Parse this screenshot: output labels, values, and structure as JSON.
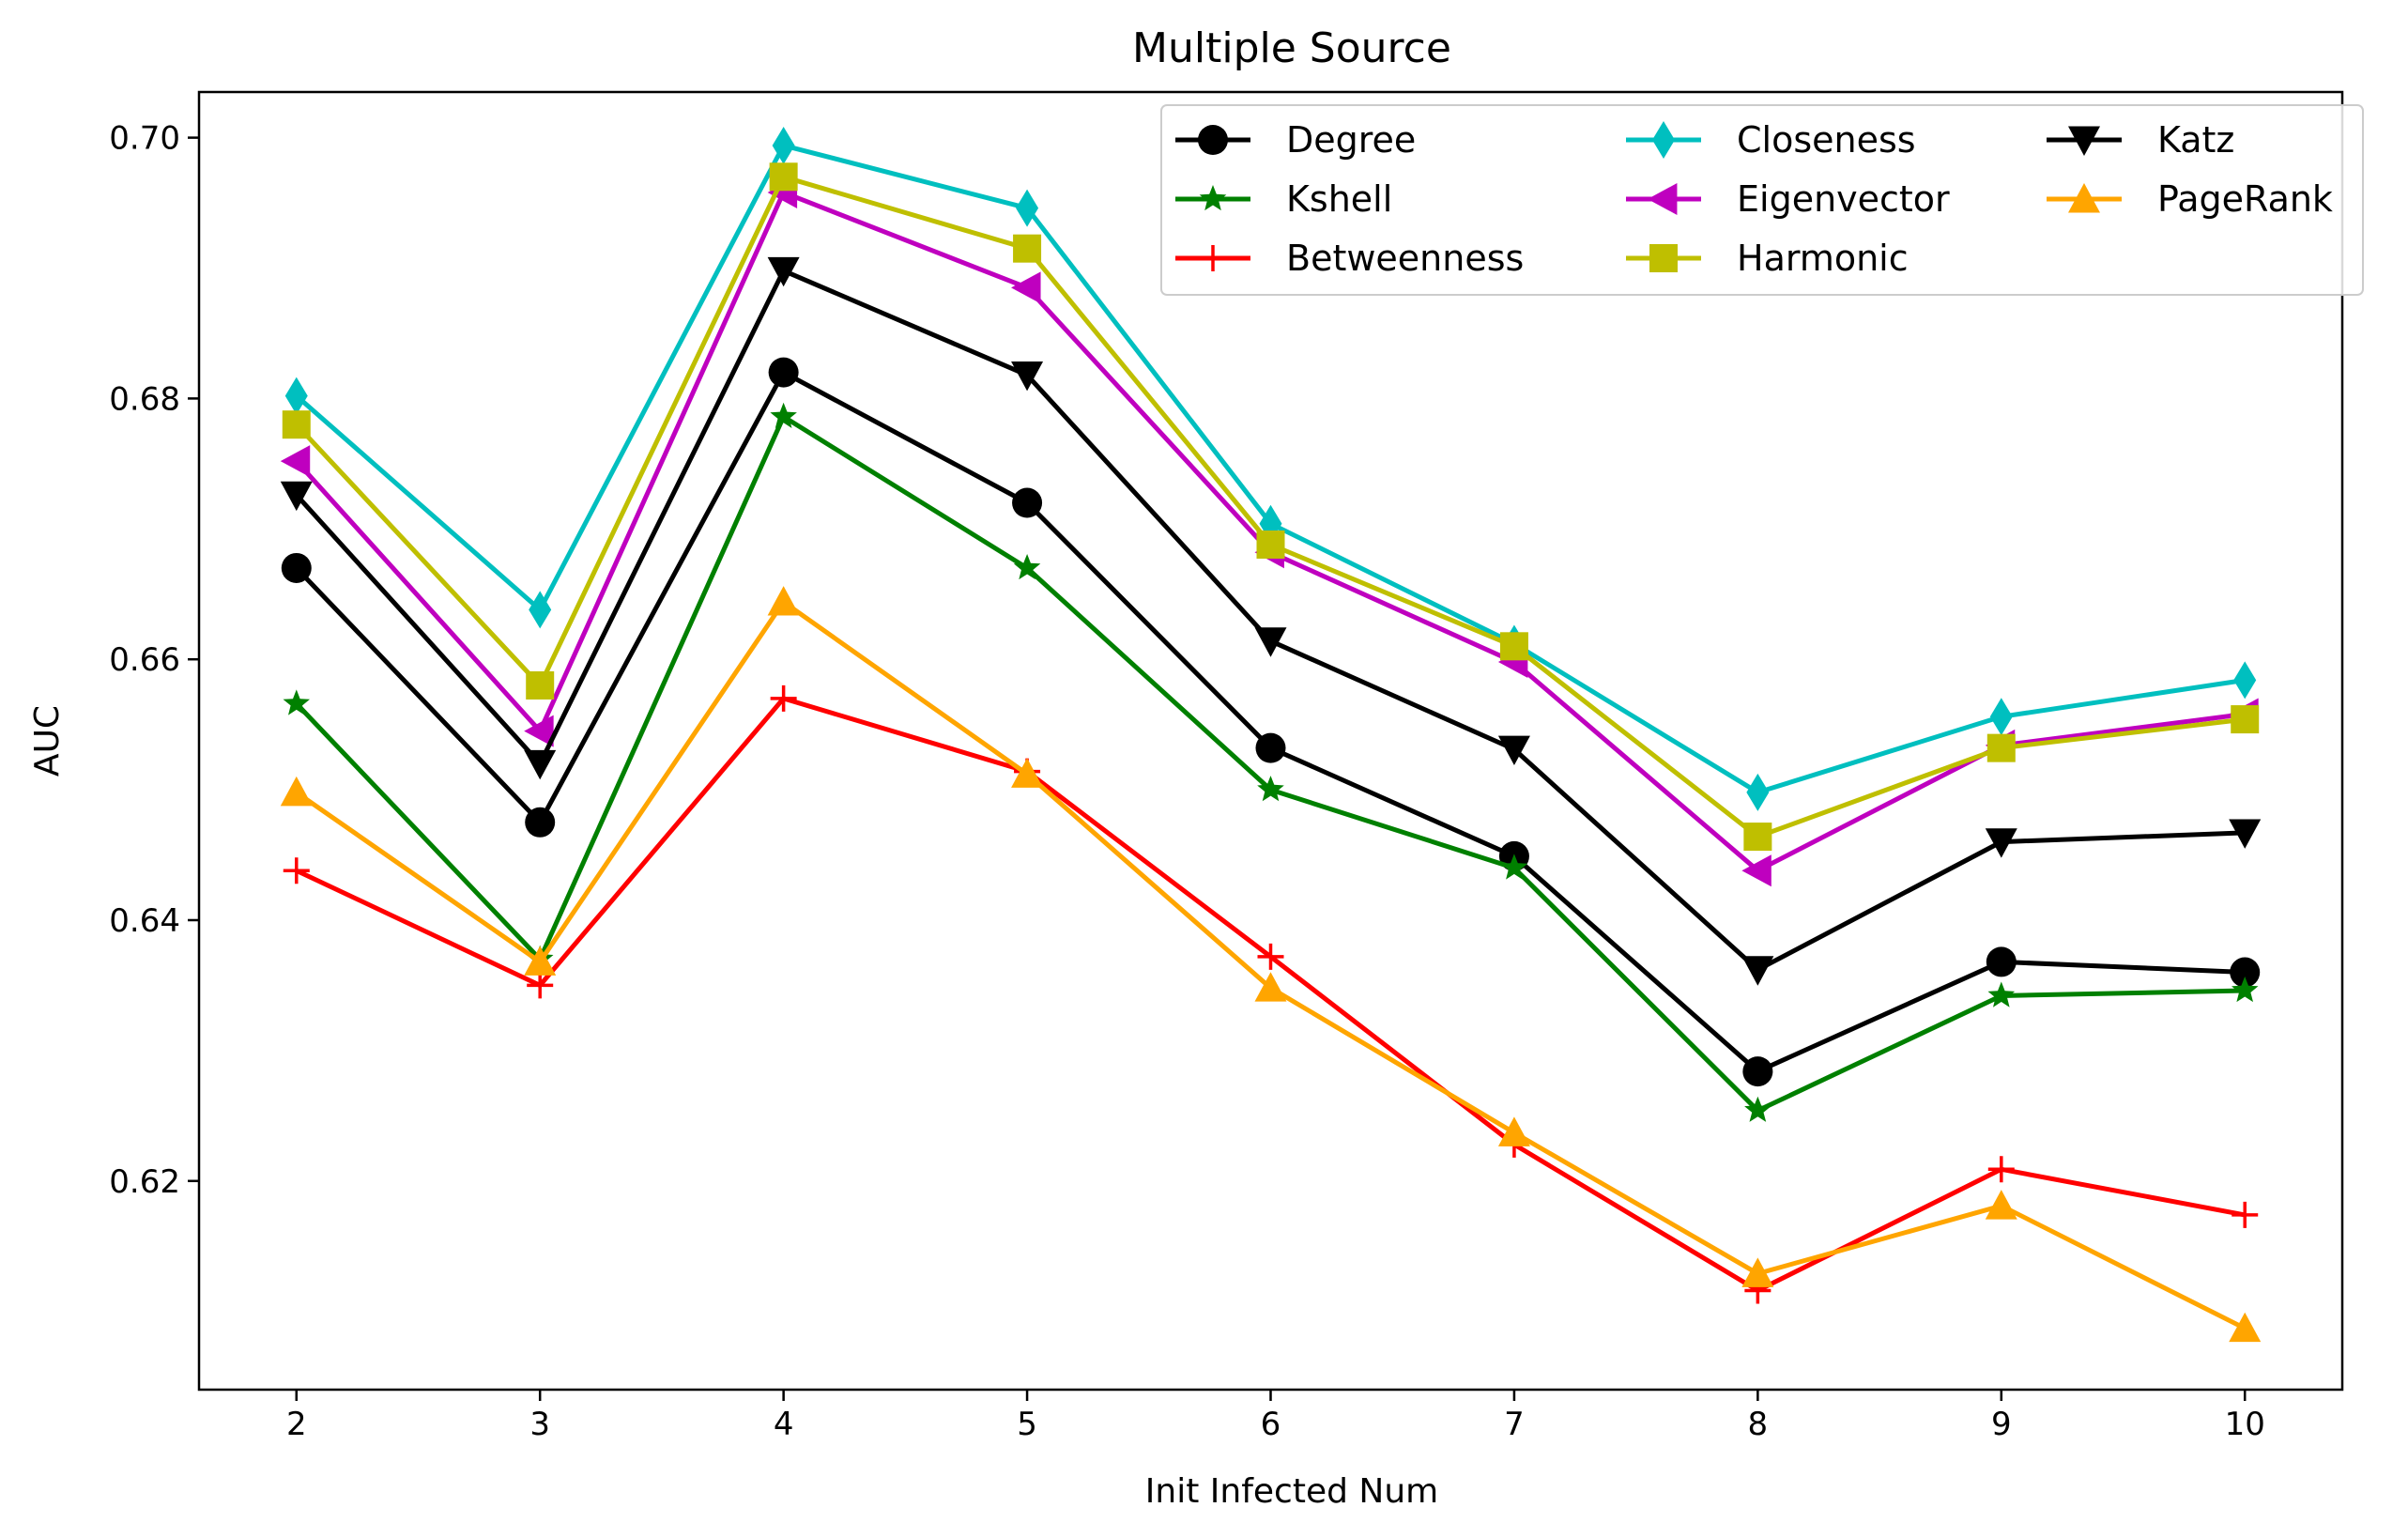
{
  "chart_data": {
    "type": "line",
    "title": "Multiple Source",
    "xlabel": "Init Infected Num",
    "ylabel": "AUC",
    "x": [
      2,
      3,
      4,
      5,
      6,
      7,
      8,
      9,
      10
    ],
    "xlim": [
      1.6,
      10.4
    ],
    "ylim": [
      0.604,
      0.7035
    ],
    "yticks": [
      0.62,
      0.64,
      0.66,
      0.68,
      0.7
    ],
    "ytick_labels": [
      "0.62",
      "0.64",
      "0.66",
      "0.68",
      "0.70"
    ],
    "xtick_labels": [
      "2",
      "3",
      "4",
      "5",
      "6",
      "7",
      "8",
      "9",
      "10"
    ],
    "grid": false,
    "legend_position": "top-right",
    "legend_columns": 3,
    "series": [
      {
        "name": "Degree",
        "color": "#000000",
        "marker": "circle",
        "values": [
          0.667,
          0.6475,
          0.682,
          0.672,
          0.6532,
          0.6449,
          0.6284,
          0.6368,
          0.636
        ]
      },
      {
        "name": "Kshell",
        "color": "#008000",
        "marker": "star",
        "values": [
          0.6566,
          0.637,
          0.6786,
          0.667,
          0.65,
          0.644,
          0.6254,
          0.6342,
          0.6346
        ]
      },
      {
        "name": "Betweenness",
        "color": "#ff0000",
        "marker": "plus",
        "values": [
          0.6438,
          0.635,
          0.657,
          0.6514,
          0.6372,
          0.6228,
          0.6116,
          0.6209,
          0.6174
        ]
      },
      {
        "name": "Closeness",
        "color": "#00bfbf",
        "marker": "thin-diamond",
        "values": [
          0.6802,
          0.6638,
          0.6994,
          0.6946,
          0.6704,
          0.6612,
          0.6498,
          0.6556,
          0.6584
        ]
      },
      {
        "name": "Eigenvector",
        "color": "#bf00bf",
        "marker": "triangle-left",
        "values": [
          0.6752,
          0.6545,
          0.6958,
          0.6885,
          0.6682,
          0.6598,
          0.6438,
          0.6534,
          0.6558
        ]
      },
      {
        "name": "Harmonic",
        "color": "#bfbf00",
        "marker": "square",
        "values": [
          0.678,
          0.658,
          0.697,
          0.6915,
          0.6688,
          0.661,
          0.6464,
          0.6532,
          0.6554
        ]
      },
      {
        "name": "Katz",
        "color": "#000000",
        "marker": "triangle-down",
        "values": [
          0.6726,
          0.652,
          0.6898,
          0.6818,
          0.6614,
          0.6531,
          0.6362,
          0.646,
          0.6467
        ]
      },
      {
        "name": "PageRank",
        "color": "#ffa500",
        "marker": "triangle-up",
        "values": [
          0.6498,
          0.6368,
          0.6644,
          0.6512,
          0.6348,
          0.6237,
          0.6129,
          0.6181,
          0.6087
        ]
      }
    ]
  }
}
